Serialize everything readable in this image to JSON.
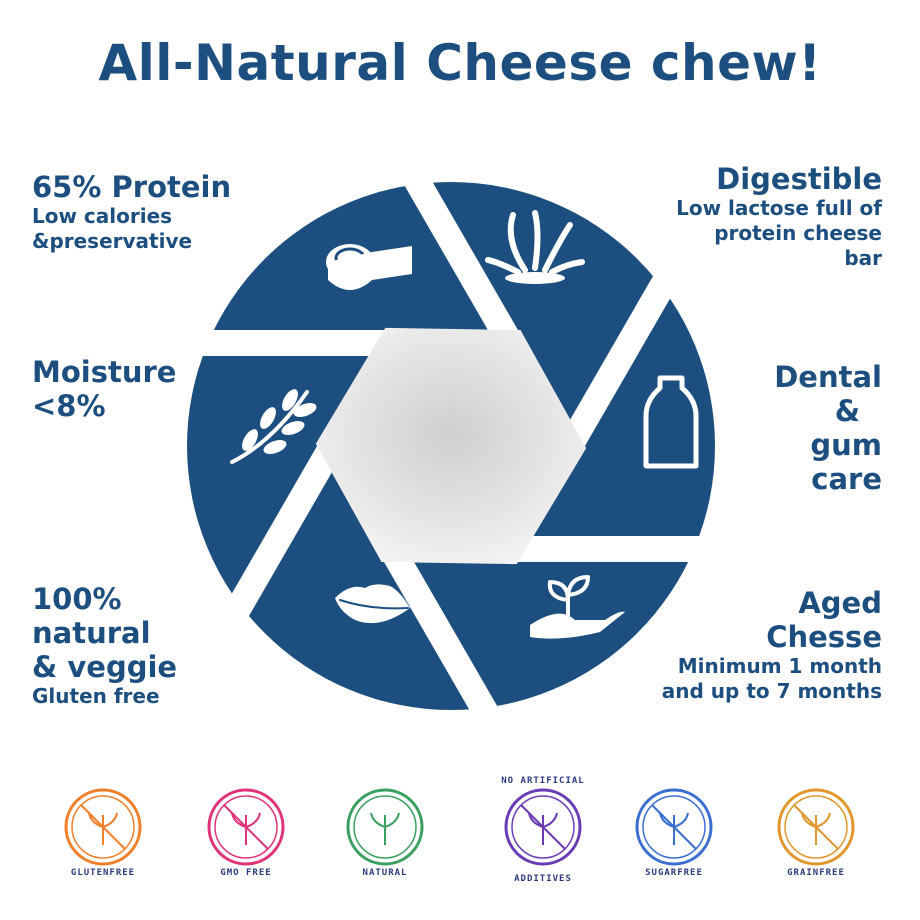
{
  "title": "All-Natural Cheese chew!",
  "colors": {
    "brand": "#1c4f7f",
    "gap": "#ffffff",
    "center": "#e6e6e6"
  },
  "features": {
    "protein": {
      "heading": "65% Protein",
      "sub1": "Low calories",
      "sub2": "&preservative",
      "icon": "measuring-tape-icon"
    },
    "digestible": {
      "heading": "Digestible",
      "sub1": "Low lactose full of",
      "sub2": "protein cheese",
      "sub3": "bar",
      "icon": "milk-splash-icon"
    },
    "moisture": {
      "heading1": "Moisture",
      "heading2": "<8%",
      "icon": "leaf-branch-icon"
    },
    "dental": {
      "l1": "Dental",
      "l2": "&",
      "l3": "gum",
      "l4": "care",
      "icon": "milk-bottle-icon"
    },
    "natural": {
      "l1": "100%",
      "l2": "natural",
      "l3": "& veggie",
      "sub": "Gluten free",
      "icon": "lips-icon"
    },
    "aged": {
      "l1": "Aged",
      "l2": "Chesse",
      "sub1": "Minimum 1 month",
      "sub2": "and up to 7 months",
      "icon": "hand-plant-icon"
    }
  },
  "badges": [
    {
      "label": "GLUTENFREE",
      "color": "#f07f2a",
      "icon": "wheat-crossed-icon"
    },
    {
      "label": "GMO FREE",
      "color": "#e0327a",
      "icon": "flask-crossed-icon"
    },
    {
      "label": "NATURAL",
      "color": "#3aa060",
      "icon": "sprout-icon"
    },
    {
      "label_top": "NO ARTIFICIAL",
      "label": "ADDITIVES",
      "color": "#6a3bb5",
      "icon": "test-tube-crossed-icon"
    },
    {
      "label": "SUGARFREE",
      "color": "#3a6fd0",
      "icon": "sugar-cube-crossed-icon"
    },
    {
      "label": "GRAINFREE",
      "color": "#e0962a",
      "icon": "grain-crossed-icon"
    }
  ]
}
